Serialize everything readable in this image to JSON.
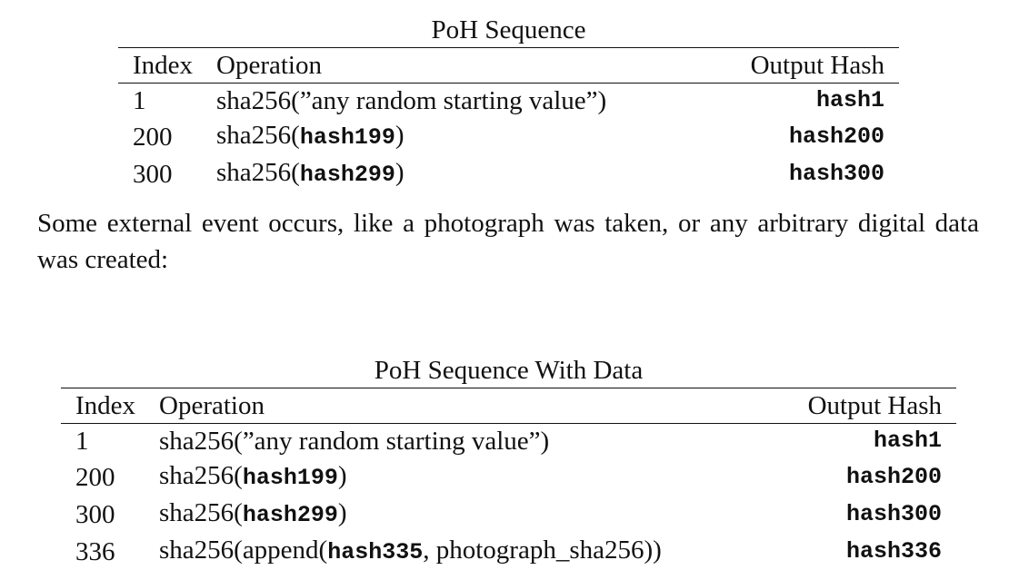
{
  "table1": {
    "caption": "PoH Sequence",
    "headers": [
      "Index",
      "Operation",
      "Output Hash"
    ],
    "rows": [
      {
        "index": "1",
        "op_pre": "sha256(”any random starting value”)",
        "op_code": "",
        "op_mid": "",
        "op_post": "",
        "output": "hash1"
      },
      {
        "index": "200",
        "op_pre": "sha256(",
        "op_code": "hash199",
        "op_mid": "",
        "op_post": ")",
        "output": "hash200"
      },
      {
        "index": "300",
        "op_pre": "sha256(",
        "op_code": "hash299",
        "op_mid": "",
        "op_post": ")",
        "output": "hash300"
      }
    ]
  },
  "paragraph": "Some external event occurs, like a photograph was taken, or any arbitrary digital data was created:",
  "table2": {
    "caption": "PoH Sequence With Data",
    "headers": [
      "Index",
      "Operation",
      "Output Hash"
    ],
    "rows": [
      {
        "index": "1",
        "op_pre": "sha256(”any random starting value”)",
        "op_code": "",
        "op_mid": "",
        "op_post": "",
        "output": "hash1"
      },
      {
        "index": "200",
        "op_pre": "sha256(",
        "op_code": "hash199",
        "op_mid": "",
        "op_post": ")",
        "output": "hash200"
      },
      {
        "index": "300",
        "op_pre": "sha256(",
        "op_code": "hash299",
        "op_mid": "",
        "op_post": ")",
        "output": "hash300"
      },
      {
        "index": "336",
        "op_pre": "sha256(append(",
        "op_code": "hash335",
        "op_mid": ", photograph_sha256))",
        "op_post": "",
        "output": "hash336"
      }
    ]
  }
}
